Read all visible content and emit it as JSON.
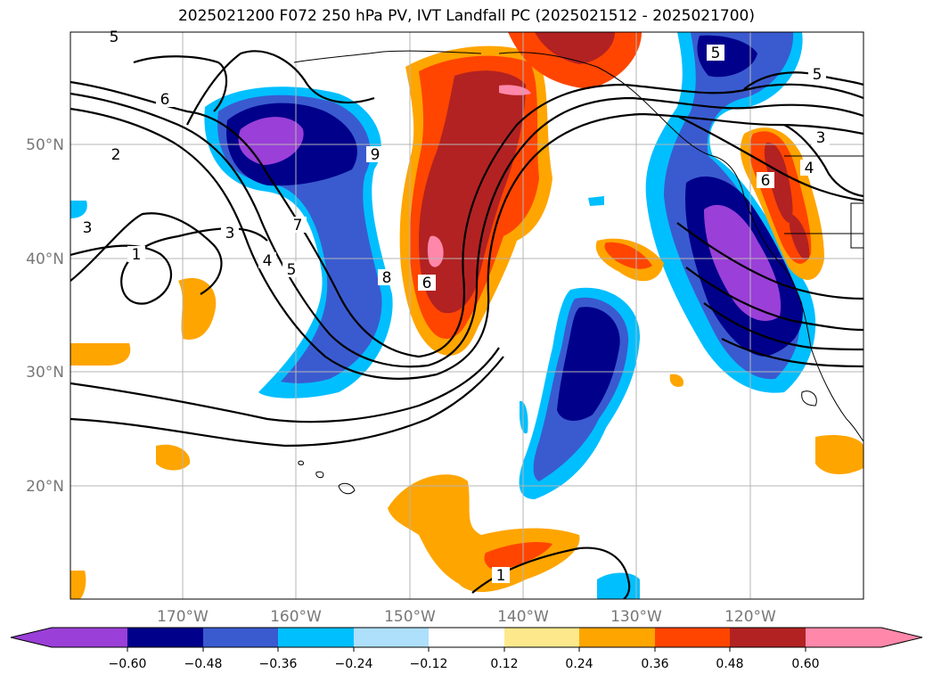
{
  "title": "2025021200 F072 250 hPa PV, IVT Landfall PC (2025021512 - 2025021700)",
  "map": {
    "lat_labels": [
      "50°N",
      "40°N",
      "30°N",
      "20°N"
    ],
    "lon_labels": [
      "170°W",
      "160°W",
      "150°W",
      "140°W",
      "130°W",
      "120°W"
    ],
    "contour_labels": [
      "5",
      "6",
      "2",
      "3",
      "1",
      "3",
      "4",
      "5",
      "7",
      "8",
      "9",
      "6",
      "1",
      "5",
      "5",
      "3",
      "4",
      "6"
    ]
  },
  "colorbar": {
    "ticks": [
      "−0.60",
      "−0.48",
      "−0.36",
      "−0.24",
      "−0.12",
      "0.12",
      "0.24",
      "0.36",
      "0.48",
      "0.60"
    ],
    "colors": [
      "#9a3fd8",
      "#00008b",
      "#3a5bd0",
      "#00bfff",
      "#aee0fb",
      "#ffffff",
      "#fde98c",
      "#ffa500",
      "#ff4500",
      "#b22222",
      "#ff88aa"
    ]
  }
}
